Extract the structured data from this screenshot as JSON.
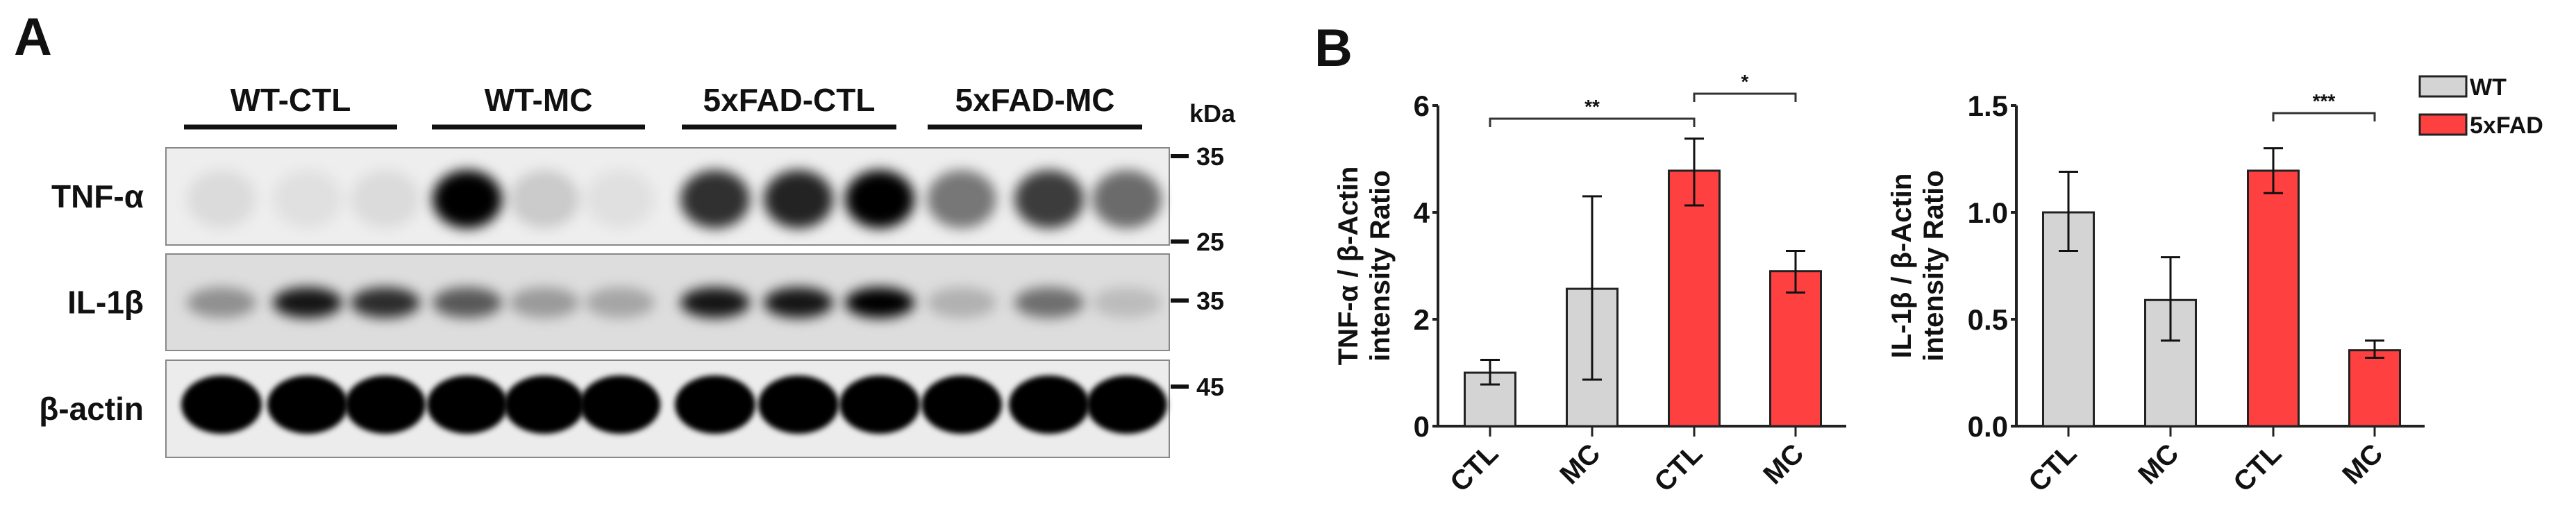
{
  "panel_a": {
    "letter": "A",
    "groups": [
      "WT-CTL",
      "WT-MC",
      "5xFAD-CTL",
      "5xFAD-MC"
    ],
    "rows": [
      "TNF-α",
      "IL-1β",
      "β-actin"
    ],
    "kda_label": "kDa",
    "markers": [
      "35",
      "25",
      "35",
      "45"
    ]
  },
  "panel_b": {
    "letter": "B",
    "legend": [
      {
        "label": "WT",
        "color": "#d4d4d4"
      },
      {
        "label": "5xFAD",
        "color": "#ff4040"
      }
    ]
  },
  "chart_data": [
    {
      "type": "bar",
      "title": "",
      "ylabel_line1": "TNF-α / β-Actin",
      "ylabel_line2": "intensity Ratio",
      "categories": [
        "CTL",
        "MC",
        "CTL",
        "MC"
      ],
      "groups": [
        "WT",
        "WT",
        "5xFAD",
        "5xFAD"
      ],
      "values": [
        1.0,
        2.57,
        4.78,
        2.9
      ],
      "error_low": [
        0.78,
        0.87,
        4.13,
        2.5
      ],
      "error_high": [
        1.24,
        4.3,
        5.38,
        3.28
      ],
      "ylim": [
        0,
        6
      ],
      "yticks": [
        "0",
        "2",
        "4",
        "6"
      ],
      "ytick_values": [
        0,
        2,
        4,
        6
      ],
      "significance": [
        {
          "from": 0,
          "to": 2,
          "label": "**"
        },
        {
          "from": 2,
          "to": 3,
          "label": "*"
        }
      ]
    },
    {
      "type": "bar",
      "title": "",
      "ylabel_line1": "IL-1β / β-Actin",
      "ylabel_line2": "intensity Ratio",
      "categories": [
        "CTL",
        "MC",
        "CTL",
        "MC"
      ],
      "groups": [
        "WT",
        "WT",
        "5xFAD",
        "5xFAD"
      ],
      "values": [
        1.0,
        0.59,
        1.195,
        0.355
      ],
      "error_low": [
        0.82,
        0.4,
        1.09,
        0.32
      ],
      "error_high": [
        1.19,
        0.79,
        1.3,
        0.4
      ],
      "ylim": [
        0,
        1.5
      ],
      "yticks": [
        "0.0",
        "0.5",
        "1.0",
        "1.5"
      ],
      "ytick_values": [
        0,
        0.5,
        1.0,
        1.5
      ],
      "significance": [
        {
          "from": 2,
          "to": 3,
          "label": "***"
        }
      ]
    }
  ]
}
